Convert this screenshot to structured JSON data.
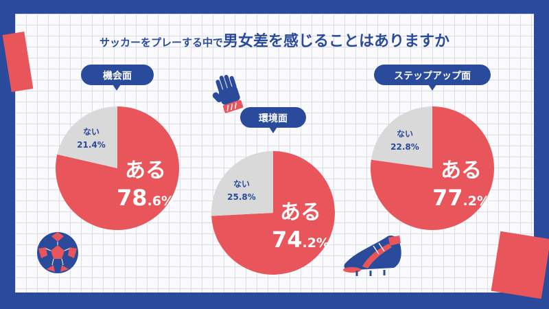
{
  "title": {
    "prefix": "サッカーをプレーする中で",
    "main": "男女差を感じることはありますか"
  },
  "chart_data": [
    {
      "type": "pie",
      "title": "機会面",
      "slices": [
        {
          "label": "ある",
          "value": 78.6
        },
        {
          "label": "ない",
          "value": 21.4
        }
      ],
      "value_labels": {
        "yes_int": "78",
        "yes_dec": ".6%",
        "no": "21.4%"
      }
    },
    {
      "type": "pie",
      "title": "環境面",
      "slices": [
        {
          "label": "ある",
          "value": 74.2
        },
        {
          "label": "ない",
          "value": 25.8
        }
      ],
      "value_labels": {
        "yes_int": "74",
        "yes_dec": ".2%",
        "no": "25.8%"
      }
    },
    {
      "type": "pie",
      "title": "ステップアップ面",
      "slices": [
        {
          "label": "ある",
          "value": 77.2
        },
        {
          "label": "ない",
          "value": 22.8
        }
      ],
      "value_labels": {
        "yes_int": "77",
        "yes_dec": ".2%",
        "no": "22.8%"
      }
    }
  ],
  "colors": {
    "yes": "#e8555a",
    "no": "#d9d9d9",
    "accent": "#2a4b9b"
  },
  "icons": [
    "soccer-ball-icon",
    "goalkeeper-glove-icon",
    "soccer-cleat-icon"
  ]
}
